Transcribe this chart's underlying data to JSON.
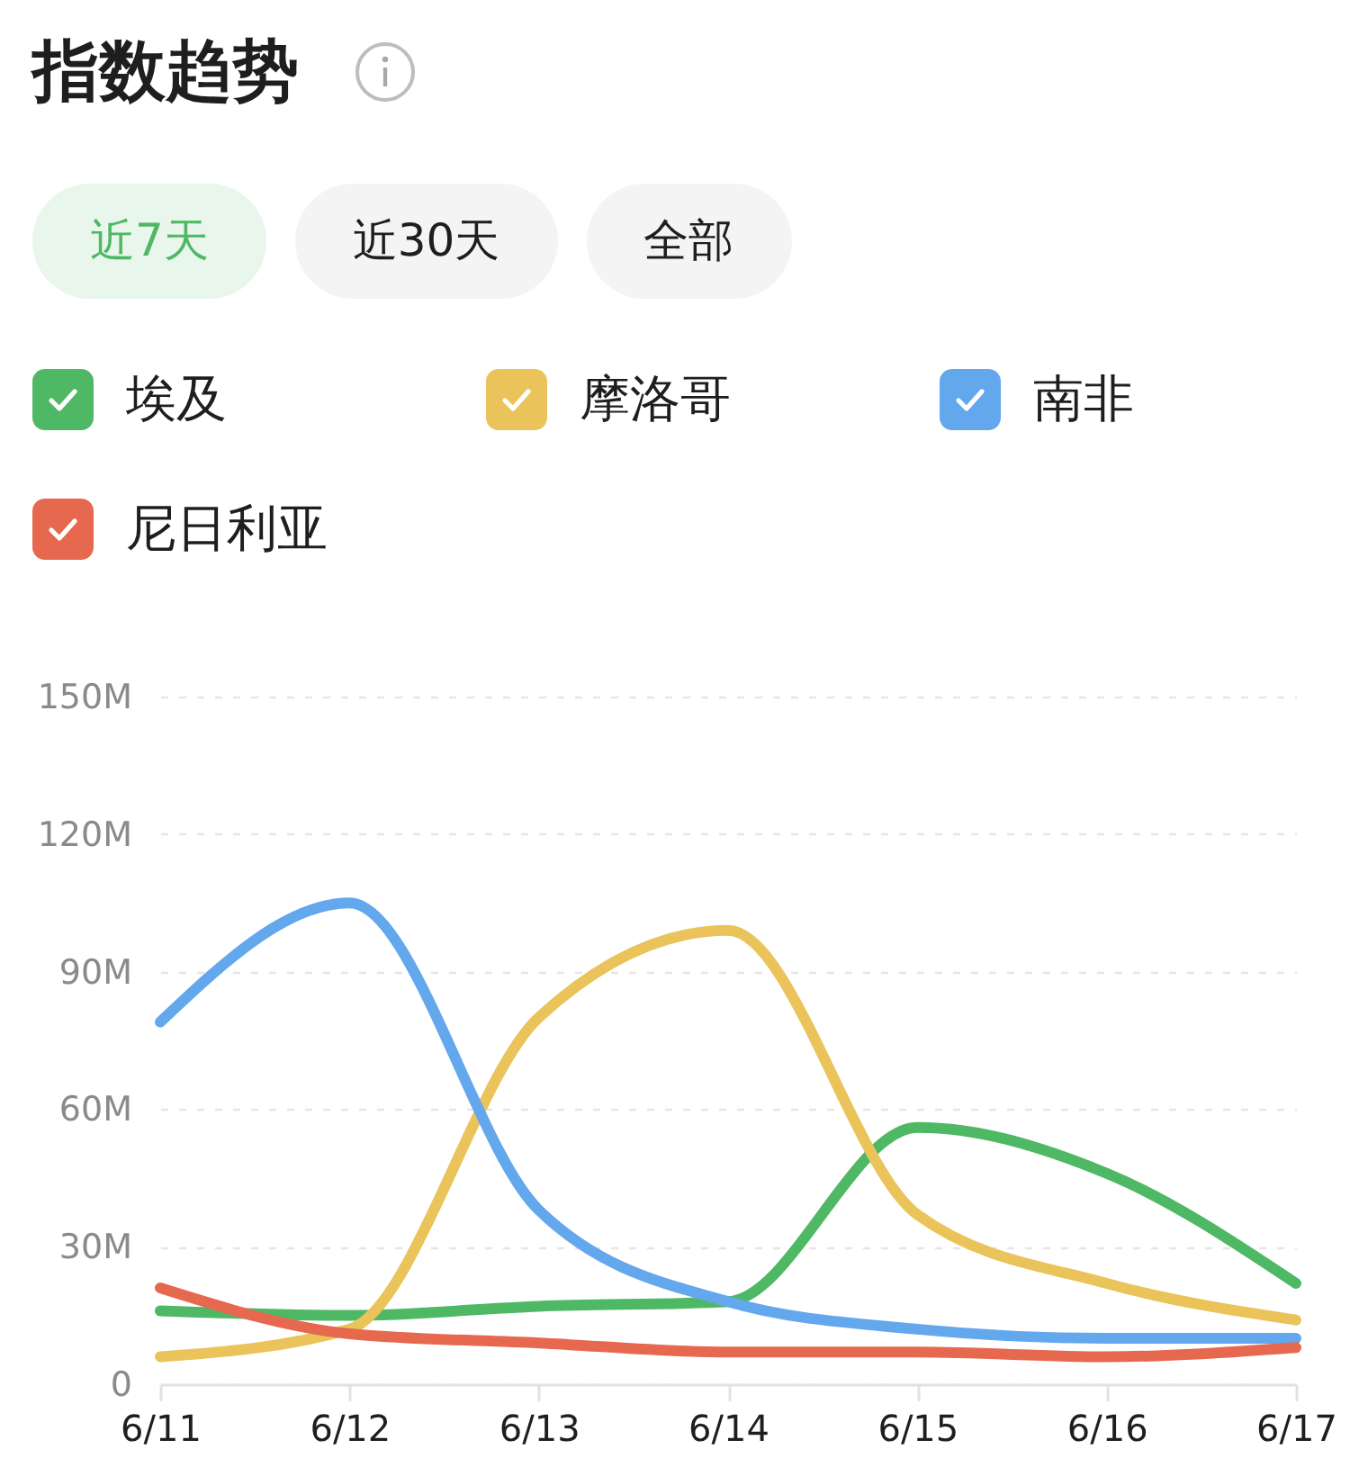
{
  "chart_data": {
    "type": "line",
    "title": "指数趋势",
    "annotations": [
      "近7天",
      "近30天",
      "全部"
    ],
    "categories": [
      "6/11",
      "6/12",
      "6/13",
      "6/14",
      "6/15",
      "6/16",
      "6/17"
    ],
    "series": [
      {
        "name": "埃及",
        "color": "#4fb864",
        "values": [
          16,
          15,
          17,
          18,
          56,
          46,
          22
        ]
      },
      {
        "name": "摩洛哥",
        "color": "#eac45a",
        "values": [
          6,
          12,
          80,
          99,
          37,
          22,
          14
        ]
      },
      {
        "name": "南非",
        "color": "#63a7ec",
        "values": [
          79,
          105,
          38,
          18,
          12,
          10,
          10
        ]
      },
      {
        "name": "尼日利亚",
        "color": "#e6684f",
        "values": [
          21,
          11,
          9,
          7,
          7,
          6,
          8
        ]
      }
    ],
    "ylim": [
      0,
      150
    ],
    "yticks": [
      0,
      {
        "value": 30,
        "label": "30M"
      },
      {
        "value": 60,
        "label": "60M"
      },
      {
        "value": 90,
        "label": "90M"
      },
      {
        "value": 120,
        "label": "120M"
      },
      {
        "value": 150,
        "label": "150M"
      }
    ],
    "grid": "y",
    "legend": "top",
    "line_style": "solid"
  }
}
